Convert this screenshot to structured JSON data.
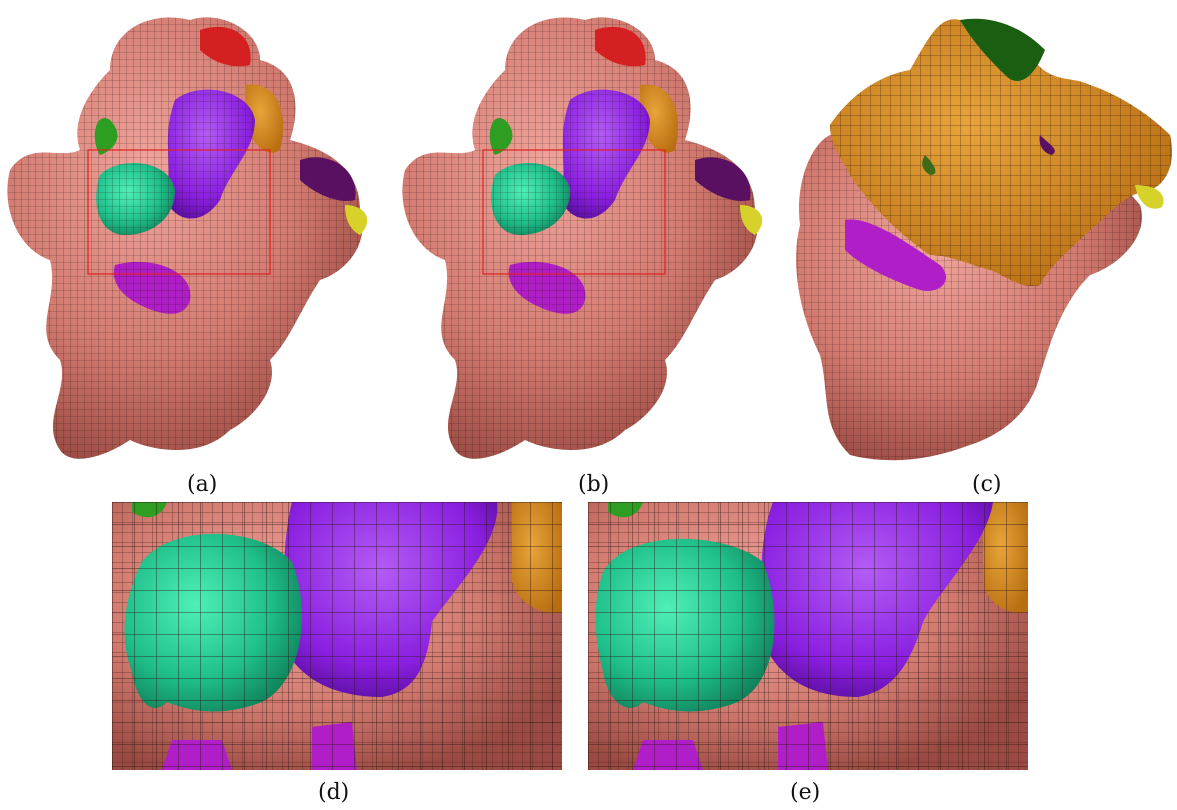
{
  "figure": {
    "panels": [
      {
        "id": "a",
        "caption": "(a)",
        "content": "mesh"
      },
      {
        "id": "b",
        "caption": "(b)",
        "content": "mesh"
      },
      {
        "id": "c",
        "caption": "(c)",
        "content": "mesh"
      },
      {
        "id": "d",
        "caption": "(d)",
        "content": "mesh-zoom"
      },
      {
        "id": "e",
        "caption": "(e)",
        "content": "mesh-zoom"
      }
    ]
  },
  "colors": {
    "salmon": "#d97a72",
    "purple": "#8a1fe0",
    "teal": "#1fbf8a",
    "orange": "#d98a1a",
    "red": "#d42020",
    "green": "#2e9e22",
    "magenta": "#b01ec8",
    "yellow": "#d6d22a",
    "dark_purple": "#5a1060",
    "highlight_box": "#e02020"
  }
}
